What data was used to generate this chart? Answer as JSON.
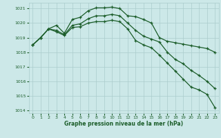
{
  "bg_color": "#cce8e8",
  "line_color": "#1a5c28",
  "grid_color": "#aacccc",
  "xlabel": "Graphe pression niveau de la mer (hPa)",
  "xlabel_color": "#1a5c28",
  "ylim": [
    1013.8,
    1021.4
  ],
  "xlim": [
    -0.5,
    23.5
  ],
  "yticks": [
    1014,
    1015,
    1016,
    1017,
    1018,
    1019,
    1020,
    1021
  ],
  "xticks": [
    0,
    1,
    2,
    3,
    4,
    5,
    6,
    7,
    8,
    9,
    10,
    11,
    12,
    13,
    14,
    15,
    16,
    17,
    18,
    19,
    20,
    21,
    22,
    23
  ],
  "line1_x": [
    0,
    1,
    2,
    3,
    4,
    5,
    6,
    7,
    8,
    9,
    10,
    11,
    12,
    13,
    14,
    15,
    16,
    17,
    18,
    19,
    20,
    21,
    22,
    23
  ],
  "line1_y": [
    1018.5,
    1019.0,
    1019.6,
    1019.85,
    1019.3,
    1020.25,
    1020.4,
    1020.85,
    1021.05,
    1021.05,
    1021.1,
    1021.0,
    1020.5,
    1020.45,
    1020.25,
    1020.0,
    1019.0,
    1018.75,
    1018.65,
    1018.55,
    1018.45,
    1018.35,
    1018.25,
    1018.0
  ],
  "line2_x": [
    0,
    1,
    2,
    3,
    4,
    5,
    6,
    7,
    8,
    9,
    10,
    11,
    12,
    13,
    14,
    15,
    16,
    17,
    18,
    19,
    20,
    21,
    22,
    23
  ],
  "line2_y": [
    1018.5,
    1019.0,
    1019.6,
    1019.5,
    1019.2,
    1019.85,
    1019.95,
    1020.3,
    1020.5,
    1020.5,
    1020.6,
    1020.5,
    1020.0,
    1019.5,
    1019.1,
    1018.9,
    1018.7,
    1018.0,
    1017.5,
    1017.2,
    1016.75,
    1016.4,
    1016.0,
    1015.5
  ],
  "line3_x": [
    0,
    1,
    2,
    3,
    4,
    5,
    6,
    7,
    8,
    9,
    10,
    11,
    12,
    13,
    14,
    15,
    16,
    17,
    18,
    19,
    20,
    21,
    22,
    23
  ],
  "line3_y": [
    1018.5,
    1019.0,
    1019.6,
    1019.4,
    1019.15,
    1019.7,
    1019.75,
    1020.0,
    1020.1,
    1020.1,
    1020.2,
    1020.1,
    1019.6,
    1018.8,
    1018.5,
    1018.3,
    1017.8,
    1017.25,
    1016.7,
    1016.15,
    1015.6,
    1015.4,
    1015.1,
    1014.2
  ]
}
